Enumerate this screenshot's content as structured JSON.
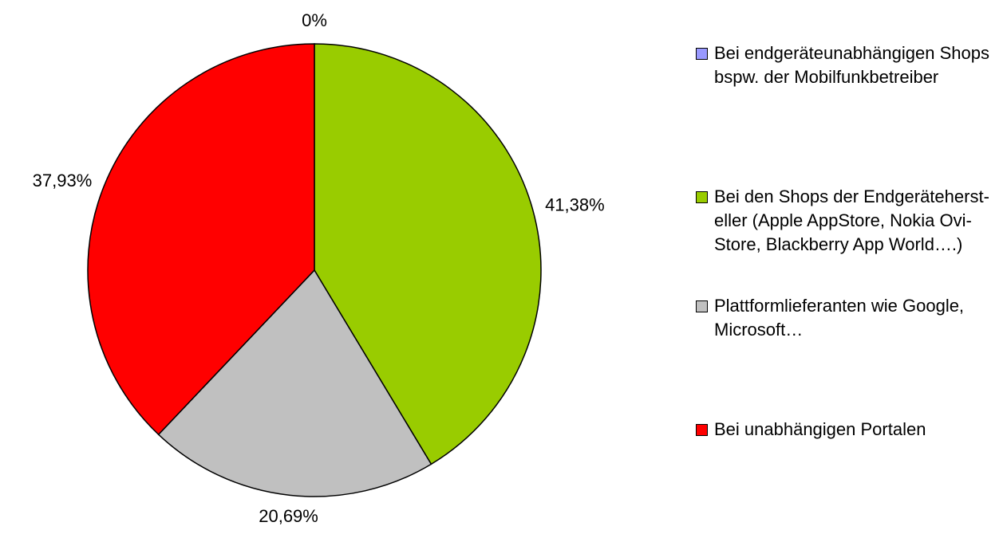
{
  "chart_data": {
    "type": "pie",
    "categories": [
      "Bei endgeräteunabhängigen Shops bspw. der Mobilfunkbetreiber",
      "Bei den Shops der Endgeräteherst­eller (Apple AppStore, Nokia Ovi-Store, Blackberry App World….)",
      "Plattformlieferanten wie Google, Microsoft…",
      "Bei unabhängigen Portalen"
    ],
    "values": [
      0,
      41.38,
      20.69,
      37.93
    ],
    "value_labels": [
      "0%",
      "41,38%",
      "20,69%",
      "37,93%"
    ],
    "colors": [
      "#9999ff",
      "#99cc00",
      "#c0c0c0",
      "#ff0000"
    ],
    "legend": "right"
  }
}
